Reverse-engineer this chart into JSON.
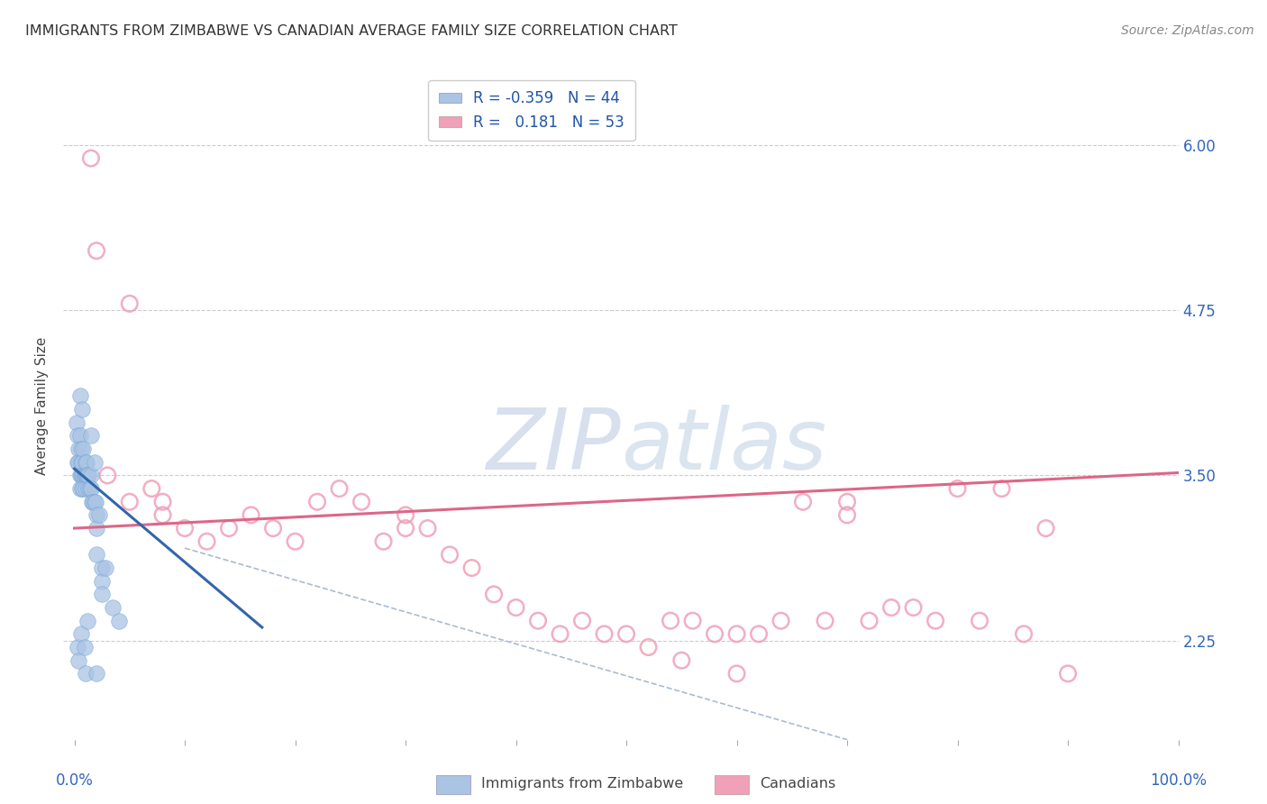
{
  "title": "IMMIGRANTS FROM ZIMBABWE VS CANADIAN AVERAGE FAMILY SIZE CORRELATION CHART",
  "source": "Source: ZipAtlas.com",
  "ylabel": "Average Family Size",
  "yticks": [
    2.25,
    3.5,
    4.75,
    6.0
  ],
  "legend_label_blue": "Immigrants from Zimbabwe",
  "legend_label_pink": "Canadians",
  "blue_color": "#aac4e4",
  "pink_color": "#f0a0b8",
  "blue_edge_color": "#7aa8d8",
  "pink_edge_color": "#e07090",
  "blue_line_color": "#3366aa",
  "pink_line_color": "#dd6688",
  "dashed_line_color": "#aabbd0",
  "watermark_color": "#c8d4e8",
  "blue_r": "-0.359",
  "blue_n": "44",
  "pink_r": "0.181",
  "pink_n": "53",
  "blue_scatter_x": [
    0.2,
    0.3,
    0.3,
    0.4,
    0.4,
    0.5,
    0.5,
    0.5,
    0.6,
    0.6,
    0.6,
    0.7,
    0.7,
    0.7,
    0.8,
    0.8,
    0.8,
    0.9,
    0.9,
    1.0,
    1.0,
    1.0,
    1.0,
    1.1,
    1.1,
    1.2,
    1.2,
    1.3,
    1.3,
    1.4,
    1.5,
    1.5,
    1.6,
    1.7,
    1.8,
    1.9,
    2.0,
    2.0,
    2.2,
    2.5,
    2.5,
    2.8,
    3.5,
    4.0
  ],
  "blue_scatter_y": [
    3.9,
    3.6,
    3.8,
    3.7,
    3.6,
    3.8,
    3.5,
    3.4,
    3.7,
    3.5,
    3.6,
    3.6,
    3.5,
    3.4,
    3.7,
    3.5,
    3.4,
    3.5,
    3.5,
    3.6,
    3.5,
    3.5,
    3.4,
    3.5,
    3.6,
    3.5,
    3.5,
    3.4,
    3.5,
    3.4,
    3.5,
    3.4,
    3.3,
    3.3,
    3.3,
    3.3,
    3.2,
    3.1,
    3.2,
    2.8,
    2.7,
    2.8,
    2.5,
    2.4
  ],
  "blue_extra_x": [
    0.5,
    0.7,
    1.5,
    1.8,
    2.0,
    2.5,
    0.3,
    0.4,
    0.6,
    0.9,
    1.2,
    1.0,
    2.0
  ],
  "blue_extra_y": [
    4.1,
    4.0,
    3.8,
    3.6,
    2.9,
    2.6,
    2.2,
    2.1,
    2.3,
    2.2,
    2.4,
    2.0,
    2.0
  ],
  "pink_scatter_x": [
    1.5,
    2.0,
    3.0,
    5.0,
    7.0,
    8.0,
    10.0,
    12.0,
    14.0,
    16.0,
    18.0,
    20.0,
    22.0,
    24.0,
    26.0,
    28.0,
    30.0,
    32.0,
    34.0,
    36.0,
    38.0,
    40.0,
    42.0,
    44.0,
    46.0,
    48.0,
    50.0,
    52.0,
    54.0,
    56.0,
    58.0,
    60.0,
    62.0,
    64.0,
    66.0,
    68.0,
    70.0,
    72.0,
    74.0,
    76.0,
    78.0,
    80.0,
    82.0,
    84.0,
    86.0,
    88.0,
    90.0,
    5.0,
    8.0,
    30.0,
    55.0,
    60.0,
    70.0
  ],
  "pink_scatter_y": [
    5.9,
    5.2,
    3.5,
    3.3,
    3.4,
    3.2,
    3.1,
    3.0,
    3.1,
    3.2,
    3.1,
    3.0,
    3.3,
    3.4,
    3.3,
    3.0,
    3.2,
    3.1,
    2.9,
    2.8,
    2.6,
    2.5,
    2.4,
    2.3,
    2.4,
    2.3,
    2.3,
    2.2,
    2.4,
    2.4,
    2.3,
    2.3,
    2.3,
    2.4,
    3.3,
    2.4,
    3.2,
    2.4,
    2.5,
    2.5,
    2.4,
    3.4,
    2.4,
    3.4,
    2.3,
    3.1,
    2.0,
    4.8,
    3.3,
    3.1,
    2.1,
    2.0,
    3.3
  ],
  "blue_line_x0": 0.0,
  "blue_line_x1": 17.0,
  "blue_line_y0": 3.55,
  "blue_line_y1": 2.35,
  "pink_line_x0": 0.0,
  "pink_line_x1": 100.0,
  "pink_line_y0": 3.1,
  "pink_line_y1": 3.52,
  "dashed_line_x0": 10.0,
  "dashed_line_x1": 70.0,
  "dashed_line_y0": 2.95,
  "dashed_line_y1": 1.5,
  "xmin": -1.0,
  "xmax": 100.0,
  "ymin": 1.5,
  "ymax": 6.55,
  "figwidth": 14.06,
  "figheight": 8.92,
  "dpi": 100
}
